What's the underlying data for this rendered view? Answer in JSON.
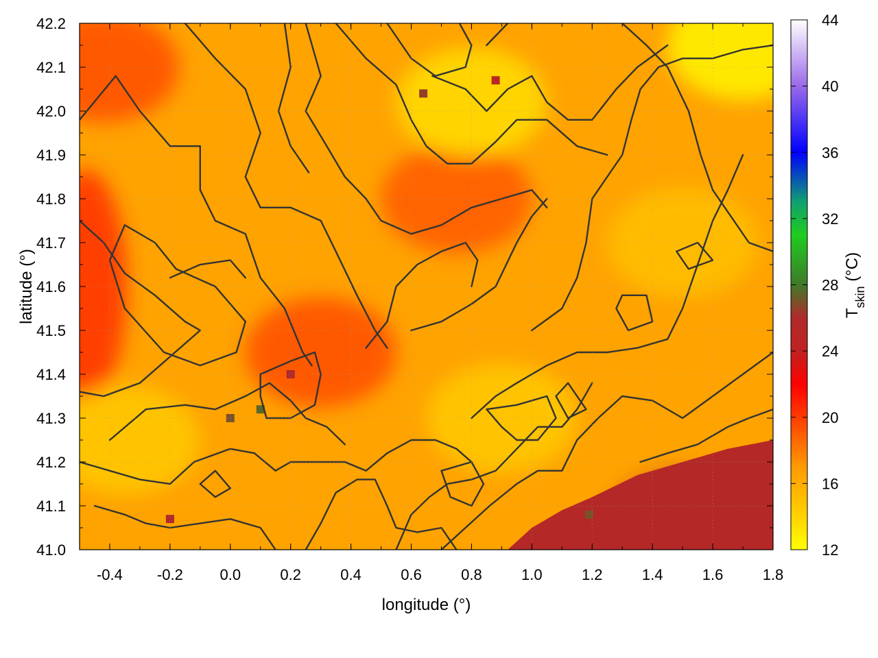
{
  "chart_data": {
    "type": "heatmap",
    "title": "",
    "xlabel": "longitude (°)",
    "ylabel": "latitude (°)",
    "xlim": [
      -0.5,
      1.8
    ],
    "ylim": [
      41.0,
      42.2
    ],
    "x_ticks": [
      -0.4,
      -0.2,
      0.0,
      0.2,
      0.4,
      0.6,
      0.8,
      1.0,
      1.2,
      1.4,
      1.6,
      1.8
    ],
    "x_tick_labels": [
      "-0.4",
      "-0.2",
      "0.0",
      "0.2",
      "0.4",
      "0.6",
      "0.8",
      "1.0",
      "1.2",
      "1.4",
      "1.6",
      "1.8"
    ],
    "y_ticks": [
      41.0,
      41.1,
      41.2,
      41.3,
      41.4,
      41.5,
      41.6,
      41.7,
      41.8,
      41.9,
      42.0,
      42.1,
      42.2
    ],
    "y_tick_labels": [
      "41.0",
      "41.1",
      "41.2",
      "41.3",
      "41.4",
      "41.5",
      "41.6",
      "41.7",
      "41.8",
      "41.9",
      "42.0",
      "42.1",
      "42.2"
    ],
    "grid": true,
    "colorbar": {
      "label": "T",
      "label_subscript": "skin",
      "label_unit": " (°C)",
      "range": [
        12,
        44
      ],
      "ticks": [
        12,
        16,
        20,
        24,
        28,
        32,
        36,
        40,
        44
      ],
      "tick_labels": [
        "12",
        "16",
        "20",
        "24",
        "28",
        "32",
        "36",
        "40",
        "44"
      ],
      "palette": [
        {
          "value": 12,
          "color": "#ffff00"
        },
        {
          "value": 14,
          "color": "#ffd200"
        },
        {
          "value": 17,
          "color": "#ff9a00"
        },
        {
          "value": 20,
          "color": "#ff3c00"
        },
        {
          "value": 22,
          "color": "#ff0000"
        },
        {
          "value": 24,
          "color": "#c02222"
        },
        {
          "value": 26,
          "color": "#b02a2a"
        },
        {
          "value": 28,
          "color": "#3f7a2a"
        },
        {
          "value": 31,
          "color": "#1fcc1f"
        },
        {
          "value": 33,
          "color": "#10a070"
        },
        {
          "value": 36,
          "color": "#0000ff"
        },
        {
          "value": 40,
          "color": "#9a6ae8"
        },
        {
          "value": 44,
          "color": "#ffffff"
        }
      ]
    },
    "regions": [
      {
        "note": "warm corridor NW",
        "lon": -0.42,
        "lat": 42.1,
        "value": 19.5
      },
      {
        "note": "warm western edge",
        "lon": -0.48,
        "lat": 41.6,
        "value": 20.5
      },
      {
        "note": "warm valley centre",
        "lon": 0.3,
        "lat": 41.45,
        "value": 19.5
      },
      {
        "note": "warm valley east",
        "lon": 0.75,
        "lat": 41.8,
        "value": 19.0
      },
      {
        "note": "cool NE corner",
        "lon": 1.7,
        "lat": 42.15,
        "value": 12.5
      },
      {
        "note": "cool north hills",
        "lon": 0.8,
        "lat": 42.02,
        "value": 13.5
      },
      {
        "note": "cool east",
        "lon": 1.5,
        "lat": 41.7,
        "value": 15.0
      },
      {
        "note": "cool SW",
        "lon": -0.35,
        "lat": 41.25,
        "value": 14.5
      },
      {
        "note": "cool hills SE",
        "lon": 0.9,
        "lat": 41.3,
        "value": 14.5
      },
      {
        "note": "sea SE",
        "lon": 1.5,
        "lat": 41.05,
        "value": 25.5
      },
      {
        "note": "hot patch",
        "lon": 0.1,
        "lat": 41.32,
        "value": 27.5
      },
      {
        "note": "hot patch",
        "lon": 0.0,
        "lat": 41.3,
        "value": 27.0
      },
      {
        "note": "hot patch",
        "lon": 0.2,
        "lat": 41.4,
        "value": 26.0
      },
      {
        "note": "hot patch",
        "lon": 0.64,
        "lat": 42.04,
        "value": 26.5
      },
      {
        "note": "hot patch",
        "lon": 0.88,
        "lat": 42.07,
        "value": 25.0
      },
      {
        "note": "hot patch",
        "lon": 1.19,
        "lat": 41.08,
        "value": 27.0
      },
      {
        "note": "hot patch",
        "lon": -0.2,
        "lat": 41.07,
        "value": 26.0
      }
    ],
    "contours": [
      [
        [
          -0.35,
          41.74
        ],
        [
          -0.25,
          41.7
        ],
        [
          -0.18,
          41.64
        ],
        [
          -0.05,
          41.6
        ],
        [
          0.05,
          41.52
        ],
        [
          0.02,
          41.45
        ],
        [
          -0.1,
          41.42
        ],
        [
          -0.22,
          41.45
        ],
        [
          -0.35,
          41.55
        ],
        [
          -0.4,
          41.66
        ],
        [
          -0.35,
          41.74
        ]
      ],
      [
        [
          -0.5,
          41.75
        ],
        [
          -0.42,
          41.7
        ],
        [
          -0.35,
          41.63
        ],
        [
          -0.25,
          41.58
        ],
        [
          -0.15,
          41.52
        ],
        [
          -0.1,
          41.5
        ],
        [
          -0.2,
          41.44
        ],
        [
          -0.3,
          41.38
        ],
        [
          -0.42,
          41.35
        ],
        [
          -0.5,
          41.36
        ]
      ],
      [
        [
          -0.5,
          41.98
        ],
        [
          -0.38,
          42.08
        ],
        [
          -0.3,
          42.0
        ],
        [
          -0.2,
          41.92
        ],
        [
          -0.1,
          41.92
        ],
        [
          -0.1,
          41.82
        ],
        [
          -0.05,
          41.75
        ],
        [
          0.05,
          41.72
        ],
        [
          0.1,
          41.62
        ],
        [
          0.18,
          41.55
        ],
        [
          0.24,
          41.45
        ],
        [
          0.27,
          41.42
        ]
      ],
      [
        [
          -0.15,
          42.2
        ],
        [
          -0.05,
          42.12
        ],
        [
          0.05,
          42.05
        ],
        [
          0.1,
          41.95
        ],
        [
          0.05,
          41.85
        ],
        [
          0.1,
          41.78
        ],
        [
          0.2,
          41.78
        ],
        [
          0.3,
          41.75
        ],
        [
          0.35,
          41.68
        ],
        [
          0.42,
          41.58
        ],
        [
          0.48,
          41.5
        ],
        [
          0.52,
          41.46
        ]
      ],
      [
        [
          0.25,
          42.2
        ],
        [
          0.3,
          42.08
        ],
        [
          0.25,
          42.0
        ],
        [
          0.32,
          41.92
        ],
        [
          0.38,
          41.85
        ],
        [
          0.45,
          41.8
        ],
        [
          0.5,
          41.75
        ],
        [
          0.6,
          41.72
        ],
        [
          0.7,
          41.74
        ],
        [
          0.8,
          41.78
        ],
        [
          0.9,
          41.8
        ],
        [
          1.0,
          41.82
        ],
        [
          1.05,
          41.78
        ]
      ],
      [
        [
          0.35,
          42.2
        ],
        [
          0.45,
          42.12
        ],
        [
          0.55,
          42.06
        ],
        [
          0.6,
          41.98
        ],
        [
          0.65,
          41.92
        ],
        [
          0.72,
          41.88
        ],
        [
          0.8,
          41.88
        ],
        [
          0.88,
          41.93
        ],
        [
          0.95,
          41.98
        ],
        [
          1.05,
          41.98
        ],
        [
          1.15,
          41.92
        ],
        [
          1.25,
          41.9
        ]
      ],
      [
        [
          0.52,
          42.2
        ],
        [
          0.6,
          42.12
        ],
        [
          0.68,
          42.08
        ],
        [
          0.78,
          42.1
        ],
        [
          0.8,
          42.15
        ],
        [
          0.76,
          42.2
        ]
      ],
      [
        [
          0.85,
          42.15
        ],
        [
          0.92,
          42.2
        ]
      ],
      [
        [
          0.67,
          42.08
        ],
        [
          0.78,
          42.05
        ],
        [
          0.85,
          42.0
        ],
        [
          0.92,
          42.05
        ],
        [
          1.0,
          42.08
        ],
        [
          1.05,
          42.02
        ],
        [
          1.12,
          41.98
        ],
        [
          1.2,
          41.98
        ],
        [
          1.28,
          42.05
        ],
        [
          1.35,
          42.1
        ],
        [
          1.45,
          42.15
        ]
      ],
      [
        [
          -0.5,
          41.2
        ],
        [
          -0.4,
          41.18
        ],
        [
          -0.3,
          41.16
        ],
        [
          -0.2,
          41.15
        ],
        [
          -0.12,
          41.2
        ],
        [
          0.0,
          41.23
        ],
        [
          0.08,
          41.22
        ],
        [
          0.15,
          41.18
        ],
        [
          0.2,
          41.2
        ],
        [
          0.3,
          41.2
        ],
        [
          0.38,
          41.2
        ],
        [
          0.45,
          41.18
        ],
        [
          0.52,
          41.22
        ],
        [
          0.6,
          41.25
        ],
        [
          0.68,
          41.25
        ],
        [
          0.75,
          41.23
        ],
        [
          0.8,
          41.2
        ]
      ],
      [
        [
          -0.4,
          41.25
        ],
        [
          -0.28,
          41.32
        ],
        [
          -0.15,
          41.33
        ],
        [
          -0.05,
          41.32
        ],
        [
          0.05,
          41.35
        ],
        [
          0.13,
          41.38
        ],
        [
          0.2,
          41.34
        ],
        [
          0.25,
          41.3
        ],
        [
          0.32,
          41.28
        ],
        [
          0.38,
          41.24
        ]
      ],
      [
        [
          -0.45,
          41.1
        ],
        [
          -0.35,
          41.08
        ],
        [
          -0.28,
          41.06
        ],
        [
          -0.2,
          41.05
        ],
        [
          -0.1,
          41.06
        ],
        [
          0.0,
          41.07
        ],
        [
          0.1,
          41.05
        ],
        [
          0.15,
          41.0
        ]
      ],
      [
        [
          0.25,
          41.0
        ],
        [
          0.3,
          41.06
        ],
        [
          0.35,
          41.13
        ],
        [
          0.42,
          41.16
        ],
        [
          0.48,
          41.16
        ],
        [
          0.52,
          41.1
        ],
        [
          0.55,
          41.05
        ],
        [
          0.62,
          41.04
        ],
        [
          0.7,
          41.05
        ],
        [
          0.75,
          41.0
        ]
      ],
      [
        [
          0.55,
          41.0
        ],
        [
          0.6,
          41.08
        ],
        [
          0.66,
          41.12
        ],
        [
          0.72,
          41.15
        ],
        [
          0.8,
          41.16
        ],
        [
          0.88,
          41.18
        ],
        [
          0.95,
          41.23
        ],
        [
          1.02,
          41.28
        ],
        [
          1.1,
          41.28
        ],
        [
          1.15,
          41.32
        ],
        [
          1.2,
          41.38
        ]
      ],
      [
        [
          0.7,
          41.0
        ],
        [
          0.78,
          41.05
        ],
        [
          0.86,
          41.1
        ],
        [
          0.95,
          41.15
        ],
        [
          1.02,
          41.18
        ],
        [
          1.1,
          41.18
        ],
        [
          1.15,
          41.25
        ],
        [
          1.22,
          41.3
        ],
        [
          1.3,
          41.35
        ],
        [
          1.4,
          41.34
        ],
        [
          1.5,
          41.3
        ],
        [
          1.6,
          41.35
        ],
        [
          1.7,
          41.4
        ],
        [
          1.8,
          41.45
        ]
      ],
      [
        [
          0.8,
          41.3
        ],
        [
          0.88,
          41.35
        ],
        [
          0.95,
          41.38
        ],
        [
          1.05,
          41.42
        ],
        [
          1.15,
          41.45
        ],
        [
          1.25,
          41.45
        ],
        [
          1.35,
          41.46
        ],
        [
          1.45,
          41.48
        ],
        [
          1.5,
          41.55
        ],
        [
          1.55,
          41.65
        ],
        [
          1.6,
          41.75
        ],
        [
          1.65,
          41.82
        ],
        [
          1.7,
          41.9
        ]
      ],
      [
        [
          0.85,
          41.32
        ],
        [
          0.95,
          41.33
        ],
        [
          1.05,
          41.35
        ],
        [
          1.08,
          41.3
        ],
        [
          1.02,
          41.25
        ],
        [
          0.95,
          41.25
        ],
        [
          0.9,
          41.28
        ],
        [
          0.85,
          41.32
        ]
      ],
      [
        [
          1.0,
          41.5
        ],
        [
          1.1,
          41.55
        ],
        [
          1.15,
          41.62
        ],
        [
          1.18,
          41.7
        ],
        [
          1.2,
          41.8
        ],
        [
          1.25,
          41.85
        ],
        [
          1.3,
          41.9
        ],
        [
          1.33,
          41.98
        ],
        [
          1.36,
          42.05
        ],
        [
          1.42,
          42.1
        ],
        [
          1.5,
          42.12
        ],
        [
          1.6,
          42.12
        ],
        [
          1.7,
          42.14
        ],
        [
          1.8,
          42.15
        ]
      ],
      [
        [
          1.3,
          42.2
        ],
        [
          1.38,
          42.15
        ],
        [
          1.45,
          42.1
        ],
        [
          1.52,
          42.0
        ],
        [
          1.56,
          41.9
        ],
        [
          1.6,
          41.82
        ],
        [
          1.66,
          41.76
        ],
        [
          1.72,
          41.7
        ],
        [
          1.8,
          41.68
        ]
      ],
      [
        [
          1.36,
          41.2
        ],
        [
          1.45,
          41.22
        ],
        [
          1.55,
          41.24
        ],
        [
          1.65,
          41.28
        ],
        [
          1.72,
          41.3
        ],
        [
          1.8,
          41.32
        ]
      ],
      [
        [
          0.6,
          41.5
        ],
        [
          0.7,
          41.52
        ],
        [
          0.8,
          41.56
        ],
        [
          0.88,
          41.6
        ],
        [
          0.95,
          41.7
        ],
        [
          1.0,
          41.76
        ],
        [
          1.05,
          41.8
        ]
      ],
      [
        [
          0.45,
          41.46
        ],
        [
          0.52,
          41.52
        ],
        [
          0.55,
          41.6
        ],
        [
          0.62,
          41.65
        ],
        [
          0.7,
          41.68
        ],
        [
          0.78,
          41.7
        ],
        [
          0.82,
          41.66
        ],
        [
          0.8,
          41.6
        ]
      ],
      [
        [
          0.1,
          41.4
        ],
        [
          0.2,
          41.43
        ],
        [
          0.28,
          41.45
        ],
        [
          0.3,
          41.4
        ],
        [
          0.28,
          41.33
        ],
        [
          0.2,
          41.3
        ],
        [
          0.12,
          41.3
        ],
        [
          0.1,
          41.35
        ],
        [
          0.1,
          41.4
        ]
      ],
      [
        [
          -0.2,
          41.62
        ],
        [
          -0.1,
          41.65
        ],
        [
          0.0,
          41.66
        ],
        [
          0.05,
          41.62
        ]
      ],
      [
        [
          0.18,
          42.2
        ],
        [
          0.2,
          42.1
        ],
        [
          0.16,
          42.0
        ],
        [
          0.2,
          41.92
        ],
        [
          0.26,
          41.86
        ]
      ],
      [
        [
          0.7,
          41.18
        ],
        [
          0.73,
          41.12
        ],
        [
          0.8,
          41.1
        ],
        [
          0.84,
          41.15
        ],
        [
          0.8,
          41.2
        ],
        [
          0.7,
          41.18
        ]
      ],
      [
        [
          1.08,
          41.35
        ],
        [
          1.12,
          41.3
        ],
        [
          1.18,
          41.32
        ],
        [
          1.12,
          41.38
        ],
        [
          1.08,
          41.35
        ]
      ],
      [
        [
          1.28,
          41.55
        ],
        [
          1.32,
          41.5
        ],
        [
          1.4,
          41.52
        ],
        [
          1.38,
          41.58
        ],
        [
          1.3,
          41.58
        ],
        [
          1.28,
          41.55
        ]
      ],
      [
        [
          1.48,
          41.68
        ],
        [
          1.55,
          41.7
        ],
        [
          1.6,
          41.66
        ],
        [
          1.52,
          41.64
        ],
        [
          1.48,
          41.68
        ]
      ],
      [
        [
          -0.1,
          41.15
        ],
        [
          -0.05,
          41.12
        ],
        [
          0.0,
          41.14
        ],
        [
          -0.05,
          41.18
        ],
        [
          -0.1,
          41.15
        ]
      ]
    ]
  }
}
